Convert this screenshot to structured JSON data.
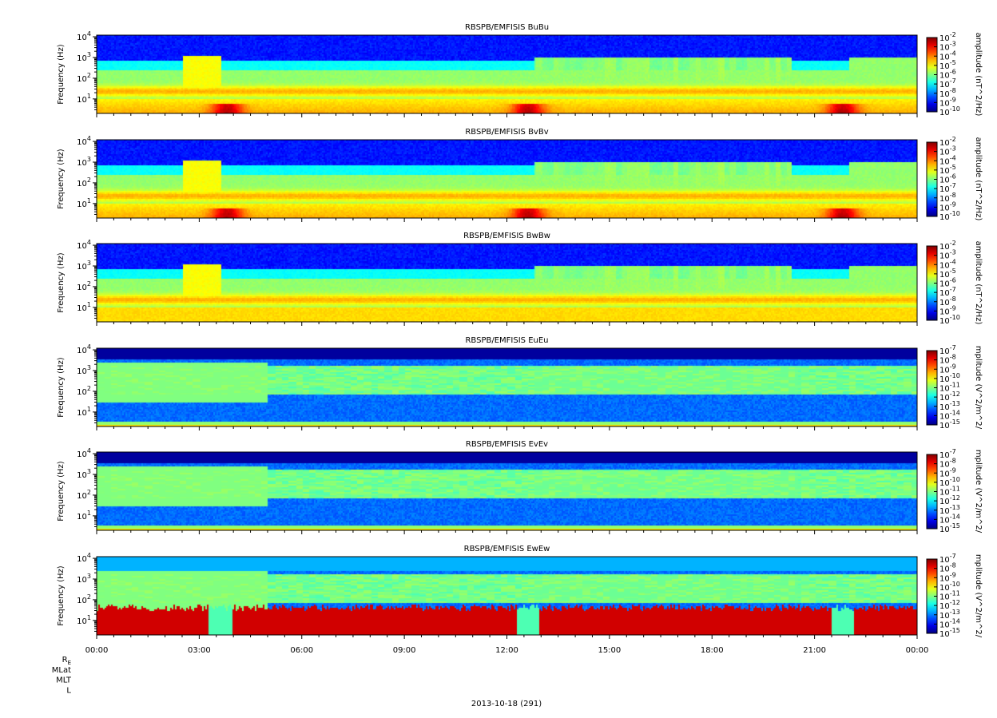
{
  "chart_data": {
    "type": "heatmap",
    "x_tick_labels": [
      "00:00",
      "03:00",
      "06:00",
      "09:00",
      "12:00",
      "15:00",
      "18:00",
      "21:00",
      "00:00"
    ],
    "x_range_hours": [
      0,
      24
    ],
    "y_scale": "log",
    "y_range_hz": [
      2,
      12000
    ],
    "y_tick_exponents": [
      1,
      2,
      3,
      4
    ],
    "orbit_rows": [
      "R_E",
      "MLat",
      "MLT",
      "L"
    ],
    "xlabel": "2013-10-18 (291)",
    "panels": [
      {
        "title": "RBSPB/EMFISIS  BuBu",
        "ylabel": "Frequency (Hz)",
        "colorbar_label": "amplitude (nT^2/Hz)",
        "colorbar_range_exponents": [
          -10,
          -2
        ],
        "colorbar_tick_exponents": [
          -2,
          -3,
          -4,
          -5,
          -6,
          -7,
          -8,
          -9,
          -10
        ]
      },
      {
        "title": "RBSPB/EMFISIS  BvBv",
        "ylabel": "Frequency (Hz)",
        "colorbar_label": "amplitude (nT^2/Hz)",
        "colorbar_range_exponents": [
          -10,
          -2
        ],
        "colorbar_tick_exponents": [
          -2,
          -3,
          -4,
          -5,
          -6,
          -7,
          -8,
          -9,
          -10
        ]
      },
      {
        "title": "RBSPB/EMFISIS  BwBw",
        "ylabel": "Frequency (Hz)",
        "colorbar_label": "amplitude (nT^2/Hz)",
        "colorbar_range_exponents": [
          -10,
          -2
        ],
        "colorbar_tick_exponents": [
          -2,
          -3,
          -4,
          -5,
          -6,
          -7,
          -8,
          -9,
          -10
        ]
      },
      {
        "title": "RBSPB/EMFISIS  EuEu",
        "ylabel": "Frequency (Hz)",
        "colorbar_label": "mplitude (V^2/m^2/",
        "colorbar_range_exponents": [
          -15,
          -7
        ],
        "colorbar_tick_exponents": [
          -7,
          -8,
          -9,
          -10,
          -11,
          -12,
          -13,
          -14,
          -15
        ]
      },
      {
        "title": "RBSPB/EMFISIS  EvEv",
        "ylabel": "Frequency (Hz)",
        "colorbar_label": "mplitude (V^2/m^2/",
        "colorbar_range_exponents": [
          -15,
          -7
        ],
        "colorbar_tick_exponents": [
          -7,
          -8,
          -9,
          -10,
          -11,
          -12,
          -13,
          -14,
          -15
        ]
      },
      {
        "title": "RBSPB/EMFISIS  EwEw",
        "ylabel": "Frequency (Hz)",
        "colorbar_label": "mplitude (V^2/m^2/",
        "colorbar_range_exponents": [
          -15,
          -7
        ],
        "colorbar_tick_exponents": [
          -7,
          -8,
          -9,
          -10,
          -11,
          -12,
          -13,
          -14,
          -15
        ]
      }
    ]
  }
}
